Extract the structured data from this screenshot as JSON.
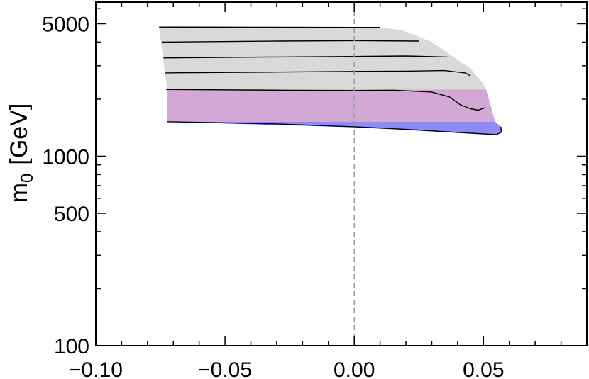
{
  "chart_data": {
    "type": "area",
    "title": "",
    "xlabel": "",
    "ylabel": "m",
    "ylabel_subscript": "0",
    "ylabel_unit": "[GeV]",
    "xlim": [
      -0.1,
      0.09
    ],
    "ylim": [
      100,
      6500
    ],
    "yscale": "log",
    "x_tick_labels": [
      {
        "value": -0.1,
        "label": "−0.10"
      },
      {
        "value": -0.05,
        "label": "−0.05"
      },
      {
        "value": 0.0,
        "label": "0.00"
      },
      {
        "value": 0.05,
        "label": "0.05"
      }
    ],
    "y_tick_labels": [
      {
        "value": 100,
        "label": "100"
      },
      {
        "value": 500,
        "label": "500"
      },
      {
        "value": 1000,
        "label": "1000"
      },
      {
        "value": 5000,
        "label": "5000"
      }
    ],
    "reference_line": {
      "x": 0.0,
      "style": "dashed",
      "color": "#999999"
    },
    "colors": {
      "gray": "#d9d9d9",
      "pink": "#d4a8d4",
      "blue": "#8c8cf4",
      "contour": "#000000"
    },
    "regions": [
      {
        "color": "gray",
        "points": [
          [
            -0.0755,
            4800
          ],
          [
            0.01,
            4780
          ],
          [
            0.019,
            4600
          ],
          [
            0.03,
            4000
          ],
          [
            0.045,
            2900
          ],
          [
            0.05,
            2400
          ],
          [
            0.051,
            2250
          ],
          [
            -0.0724,
            2250
          ]
        ]
      },
      {
        "color": "pink",
        "points": [
          [
            -0.0724,
            2250
          ],
          [
            0.051,
            2250
          ],
          [
            0.0545,
            1520
          ],
          [
            -0.0724,
            1520
          ]
        ]
      },
      {
        "color": "blue",
        "points": [
          [
            -0.0724,
            1520
          ],
          [
            0.0545,
            1520
          ],
          [
            0.0567,
            1430
          ],
          [
            0.057,
            1340
          ],
          [
            0.055,
            1300
          ],
          [
            0.04,
            1330
          ],
          [
            0.0,
            1420
          ],
          [
            -0.0724,
            1520
          ]
        ]
      }
    ],
    "contours": [
      [
        [
          -0.0755,
          4800
        ],
        [
          0.01,
          4780
        ]
      ],
      [
        [
          -0.0745,
          4000
        ],
        [
          -0.03,
          4050
        ],
        [
          0.0,
          4070
        ],
        [
          0.025,
          4050
        ]
      ],
      [
        [
          -0.0738,
          3300
        ],
        [
          -0.03,
          3340
        ],
        [
          0.0,
          3360
        ],
        [
          0.02,
          3380
        ],
        [
          0.036,
          3340
        ]
      ],
      [
        [
          -0.0732,
          2750
        ],
        [
          -0.03,
          2780
        ],
        [
          0.0,
          2800
        ],
        [
          0.02,
          2810
        ],
        [
          0.035,
          2830
        ],
        [
          0.043,
          2750
        ],
        [
          0.045,
          2650
        ]
      ],
      [
        [
          -0.0728,
          2250
        ],
        [
          -0.03,
          2230
        ],
        [
          0.0,
          2220
        ],
        [
          0.015,
          2230
        ],
        [
          0.03,
          2180
        ],
        [
          0.037,
          2050
        ],
        [
          0.041,
          1870
        ],
        [
          0.045,
          1780
        ],
        [
          0.048,
          1750
        ],
        [
          0.0505,
          1800
        ]
      ],
      [
        [
          -0.0724,
          1520
        ],
        [
          -0.03,
          1480
        ],
        [
          0.0,
          1430
        ],
        [
          0.02,
          1385
        ],
        [
          0.04,
          1335
        ],
        [
          0.055,
          1300
        ],
        [
          0.057,
          1340
        ],
        [
          0.0567,
          1430
        ]
      ]
    ]
  }
}
